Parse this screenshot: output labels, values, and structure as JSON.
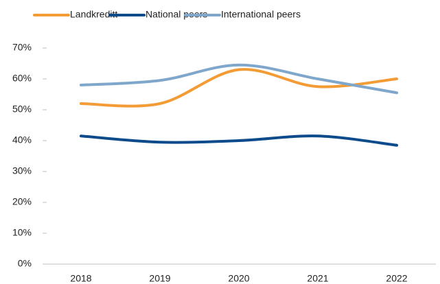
{
  "chart_data": {
    "type": "line",
    "categories": [
      "2018",
      "2019",
      "2020",
      "2021",
      "2022"
    ],
    "series": [
      {
        "name": "Landkreditt",
        "color": "#f39b34",
        "values": [
          52,
          52,
          63,
          57.5,
          60
        ]
      },
      {
        "name": "National peers",
        "color": "#0b4a8b",
        "values": [
          41.5,
          39.5,
          40,
          41.5,
          38.5
        ]
      },
      {
        "name": "International peers",
        "color": "#7fa6cb",
        "values": [
          58,
          59.5,
          64.5,
          60,
          55.5
        ]
      }
    ],
    "ylim": [
      0,
      70
    ],
    "yticks": [
      {
        "value": 0,
        "label": "0%"
      },
      {
        "value": 10,
        "label": "10%"
      },
      {
        "value": 20,
        "label": "20%"
      },
      {
        "value": 30,
        "label": "30%"
      },
      {
        "value": 40,
        "label": "40%"
      },
      {
        "value": 50,
        "label": "50%"
      },
      {
        "value": 60,
        "label": "60%"
      },
      {
        "value": 70,
        "label": "70%"
      }
    ],
    "smooth": true,
    "legend": "top"
  }
}
